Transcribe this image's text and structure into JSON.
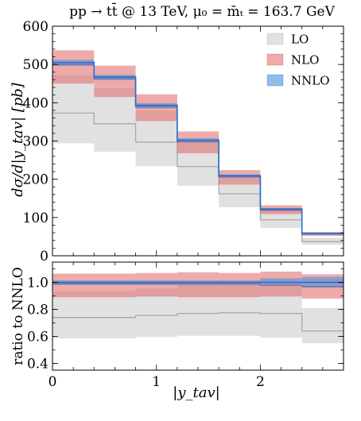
{
  "chart_data": {
    "type": "histogram-band",
    "title": "pp → tt̄ @ 13 TeV, μ₀ = m̄ₜ = 163.7 GeV",
    "xlabel": "|y_tav|",
    "ylabel": "dσ/d|y_tav| [pb]",
    "ratio_ylabel": "ratio to NNLO",
    "xlim": [
      0,
      2.8
    ],
    "ylim": [
      0,
      600
    ],
    "ratio_ylim": [
      0.35,
      1.15
    ],
    "x_ticks": [
      0,
      1,
      2
    ],
    "y_ticks": [
      0,
      100,
      200,
      300,
      400,
      500,
      600
    ],
    "ratio_y_ticks": [
      0.4,
      0.6,
      0.8,
      1.0
    ],
    "bin_edges": [
      0,
      0.4,
      0.8,
      1.2,
      1.6,
      2.0,
      2.4,
      2.8
    ],
    "series": [
      {
        "name": "LO",
        "color": "#b8b8b8",
        "line_color": "#a8a8a8",
        "central": [
          373,
          345,
          297,
          233,
          162,
          94,
          37
        ],
        "low": [
          294,
          272,
          234,
          183,
          127,
          72,
          29
        ],
        "high": [
          472,
          438,
          379,
          296,
          205,
          120,
          47
        ]
      },
      {
        "name": "NLO",
        "color": "#e06666",
        "line_color": "#cc4444",
        "central": [
          500,
          463,
          389,
          298,
          206,
          119,
          57
        ],
        "low": [
          450,
          415,
          352,
          268,
          186,
          109,
          52
        ],
        "high": [
          537,
          497,
          422,
          325,
          224,
          132,
          62
        ]
      },
      {
        "name": "NNLO",
        "color": "#4a90d9",
        "line_color": "#1f6fd0",
        "central": [
          505,
          467,
          393,
          302,
          209,
          122,
          58
        ],
        "low": [
          496,
          459,
          385,
          296,
          204,
          118,
          55
        ],
        "high": [
          512,
          473,
          399,
          307,
          213,
          125,
          61
        ]
      }
    ],
    "ratio_series": [
      {
        "name": "LO",
        "central": [
          0.74,
          0.74,
          0.755,
          0.77,
          0.775,
          0.77,
          0.64
        ],
        "low": [
          0.585,
          0.585,
          0.595,
          0.605,
          0.605,
          0.59,
          0.55
        ],
        "high": [
          0.935,
          0.935,
          0.955,
          0.98,
          0.98,
          0.985,
          0.81
        ]
      },
      {
        "name": "NLO",
        "central": [
          0.99,
          0.99,
          0.99,
          0.99,
          0.99,
          0.98,
          0.97
        ],
        "low": [
          0.89,
          0.89,
          0.895,
          0.89,
          0.89,
          0.895,
          0.88
        ],
        "high": [
          1.065,
          1.065,
          1.07,
          1.075,
          1.07,
          1.08,
          1.06
        ]
      },
      {
        "name": "NNLO",
        "central": [
          1.0,
          1.0,
          1.0,
          1.0,
          1.0,
          1.0,
          1.0
        ],
        "low": [
          0.98,
          0.98,
          0.98,
          0.98,
          0.98,
          0.975,
          0.96
        ],
        "high": [
          1.015,
          1.015,
          1.015,
          1.015,
          1.015,
          1.03,
          1.04
        ]
      }
    ],
    "legend": {
      "placement": "top-right",
      "entries": [
        "LO",
        "NLO",
        "NNLO"
      ]
    }
  }
}
